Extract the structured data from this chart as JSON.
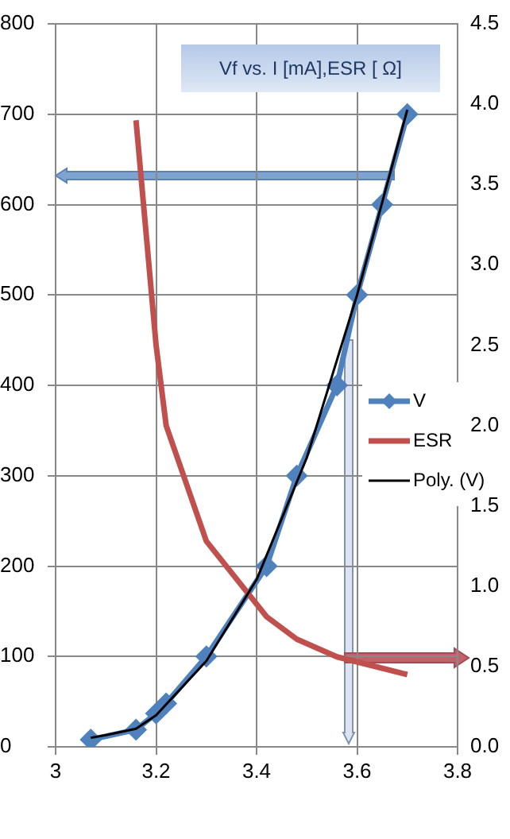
{
  "chart_data": {
    "type": "line",
    "title": "Vf vs. I [mA],ESR [ Ω]",
    "xlim": [
      3,
      3.8
    ],
    "xticks": [
      3,
      3.2,
      3.4,
      3.6,
      3.8
    ],
    "ylim": [
      0,
      800
    ],
    "yticks": [
      0,
      100,
      200,
      300,
      400,
      500,
      600,
      700,
      800
    ],
    "y2lim": [
      0,
      4.5
    ],
    "y2ticks": [
      {
        "value": 0,
        "label": "0.0"
      },
      {
        "value": 0.5,
        "label": "0.5"
      },
      {
        "value": 1,
        "label": "1.0"
      },
      {
        "value": 1.5,
        "label": "1.5"
      },
      {
        "value": 2,
        "label": "2.0"
      },
      {
        "value": 2.5,
        "label": "2.5"
      },
      {
        "value": 3,
        "label": "3.0"
      },
      {
        "value": 3.5,
        "label": "3.5"
      },
      {
        "value": 4,
        "label": "4.0"
      },
      {
        "value": 4.5,
        "label": "4.5"
      }
    ],
    "grid": true,
    "legend": "right",
    "series": [
      {
        "name": "V",
        "color": "#4f81bd",
        "marker": "diamond",
        "x": [
          3.07,
          3.16,
          3.2,
          3.22,
          3.3,
          3.42,
          3.48,
          3.56,
          3.6,
          3.65,
          3.7
        ],
        "values": [
          8,
          19,
          37,
          48,
          100,
          200,
          300,
          400,
          500,
          600,
          700
        ]
      },
      {
        "name": "ESR",
        "color": "#c0504d",
        "marker": "none",
        "axis": "y2",
        "x": [
          3.16,
          3.2,
          3.22,
          3.3,
          3.42,
          3.48,
          3.56,
          3.7
        ],
        "values": [
          3.9,
          2.5,
          2.0,
          1.28,
          0.81,
          0.67,
          0.56,
          0.45
        ]
      },
      {
        "name": "Poly. (V)",
        "color": "#000000",
        "marker": "none",
        "x": [
          3.07,
          3.1,
          3.16,
          3.2,
          3.3,
          3.4,
          3.5,
          3.6,
          3.7
        ],
        "values": [
          10,
          13,
          20,
          35,
          95,
          185,
          320,
          500,
          705
        ]
      }
    ]
  }
}
